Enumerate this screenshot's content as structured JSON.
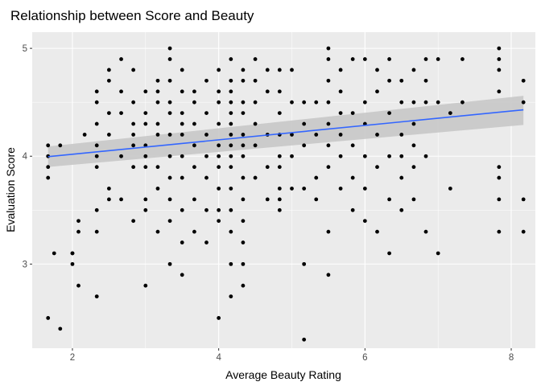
{
  "chart_data": {
    "type": "scatter",
    "title": "Relationship between Score and Beauty",
    "xlabel": "Average Beauty Rating",
    "ylabel": "Evaluation Score",
    "xlim": [
      1.45,
      8.33
    ],
    "ylim": [
      2.22,
      5.15
    ],
    "x_ticks": [
      2,
      4,
      6,
      8
    ],
    "y_ticks": [
      3,
      4,
      5
    ],
    "grid": true,
    "legend": "none",
    "colors": {
      "panel": "#ebebeb",
      "grid_major": "#ffffff",
      "points": "#000000",
      "trend_line": "#3366ff",
      "confidence_band": "#c8c8c8"
    },
    "trend": {
      "x": [
        1.667,
        8.167
      ],
      "y": [
        3.996,
        4.43
      ],
      "band_lower": [
        3.9,
        4.29
      ],
      "band_upper": [
        4.09,
        4.56
      ]
    },
    "points": [
      [
        1.667,
        2.5
      ],
      [
        1.667,
        3.8
      ],
      [
        1.667,
        3.9
      ],
      [
        1.667,
        4.1
      ],
      [
        1.833,
        2.4
      ],
      [
        1.833,
        4.1
      ],
      [
        1.75,
        3.1
      ],
      [
        1.667,
        4.0
      ],
      [
        2.0,
        3.0
      ],
      [
        2.0,
        3.1
      ],
      [
        2.0,
        3.1
      ],
      [
        2.083,
        2.8
      ],
      [
        2.083,
        3.3
      ],
      [
        2.083,
        3.4
      ],
      [
        2.167,
        4.2
      ],
      [
        2.333,
        2.7
      ],
      [
        2.333,
        3.3
      ],
      [
        2.333,
        3.5
      ],
      [
        2.333,
        3.9
      ],
      [
        2.333,
        4.0
      ],
      [
        2.333,
        4.1
      ],
      [
        2.333,
        4.3
      ],
      [
        2.333,
        4.5
      ],
      [
        2.333,
        4.6
      ],
      [
        2.5,
        3.6
      ],
      [
        2.5,
        3.7
      ],
      [
        2.5,
        4.2
      ],
      [
        2.5,
        4.4
      ],
      [
        2.5,
        4.7
      ],
      [
        2.5,
        4.8
      ],
      [
        2.667,
        3.6
      ],
      [
        2.667,
        4.0
      ],
      [
        2.667,
        4.4
      ],
      [
        2.667,
        4.6
      ],
      [
        2.667,
        4.9
      ],
      [
        2.833,
        3.4
      ],
      [
        2.833,
        3.9
      ],
      [
        2.833,
        4.1
      ],
      [
        2.833,
        4.2
      ],
      [
        2.833,
        4.3
      ],
      [
        2.833,
        4.5
      ],
      [
        2.833,
        4.8
      ],
      [
        3.0,
        3.5
      ],
      [
        3.0,
        3.6
      ],
      [
        3.0,
        3.9
      ],
      [
        3.0,
        4.0
      ],
      [
        3.0,
        4.1
      ],
      [
        3.0,
        4.3
      ],
      [
        3.0,
        4.4
      ],
      [
        3.0,
        4.6
      ],
      [
        3.0,
        2.8
      ],
      [
        3.167,
        3.3
      ],
      [
        3.167,
        3.7
      ],
      [
        3.167,
        3.9
      ],
      [
        3.167,
        4.2
      ],
      [
        3.167,
        4.3
      ],
      [
        3.167,
        4.5
      ],
      [
        3.167,
        4.6
      ],
      [
        3.167,
        4.7
      ],
      [
        3.333,
        3.0
      ],
      [
        3.333,
        3.4
      ],
      [
        3.333,
        3.6
      ],
      [
        3.333,
        3.8
      ],
      [
        3.333,
        4.0
      ],
      [
        3.333,
        4.2
      ],
      [
        3.333,
        4.4
      ],
      [
        3.333,
        4.5
      ],
      [
        3.333,
        4.7
      ],
      [
        3.333,
        4.9
      ],
      [
        3.333,
        5.0
      ],
      [
        3.5,
        2.9
      ],
      [
        3.5,
        3.2
      ],
      [
        3.5,
        3.5
      ],
      [
        3.5,
        3.8
      ],
      [
        3.5,
        4.0
      ],
      [
        3.5,
        4.2
      ],
      [
        3.5,
        4.3
      ],
      [
        3.5,
        4.4
      ],
      [
        3.5,
        4.6
      ],
      [
        3.5,
        4.8
      ],
      [
        3.667,
        3.3
      ],
      [
        3.667,
        3.6
      ],
      [
        3.667,
        3.9
      ],
      [
        3.667,
        4.1
      ],
      [
        3.667,
        4.3
      ],
      [
        3.667,
        4.5
      ],
      [
        3.667,
        4.6
      ],
      [
        3.833,
        3.2
      ],
      [
        3.833,
        3.5
      ],
      [
        3.833,
        3.8
      ],
      [
        3.833,
        4.0
      ],
      [
        3.833,
        4.2
      ],
      [
        3.833,
        4.4
      ],
      [
        3.833,
        4.7
      ],
      [
        4.0,
        3.4
      ],
      [
        4.0,
        3.5
      ],
      [
        4.0,
        3.7
      ],
      [
        4.0,
        3.9
      ],
      [
        4.0,
        4.0
      ],
      [
        4.0,
        4.1
      ],
      [
        4.0,
        4.3
      ],
      [
        4.0,
        4.5
      ],
      [
        4.0,
        4.6
      ],
      [
        4.0,
        4.8
      ],
      [
        4.0,
        2.5
      ],
      [
        4.167,
        2.7
      ],
      [
        4.167,
        3.0
      ],
      [
        4.167,
        3.3
      ],
      [
        4.167,
        3.5
      ],
      [
        4.167,
        3.7
      ],
      [
        4.167,
        3.9
      ],
      [
        4.167,
        4.0
      ],
      [
        4.167,
        4.1
      ],
      [
        4.167,
        4.2
      ],
      [
        4.167,
        4.3
      ],
      [
        4.167,
        4.4
      ],
      [
        4.167,
        4.5
      ],
      [
        4.167,
        4.6
      ],
      [
        4.167,
        4.7
      ],
      [
        4.167,
        4.9
      ],
      [
        4.333,
        2.8
      ],
      [
        4.333,
        3.0
      ],
      [
        4.333,
        3.2
      ],
      [
        4.333,
        3.4
      ],
      [
        4.333,
        3.6
      ],
      [
        4.333,
        3.8
      ],
      [
        4.333,
        4.0
      ],
      [
        4.333,
        4.1
      ],
      [
        4.333,
        4.2
      ],
      [
        4.333,
        4.4
      ],
      [
        4.333,
        4.5
      ],
      [
        4.333,
        4.7
      ],
      [
        4.333,
        4.8
      ],
      [
        4.5,
        3.8
      ],
      [
        4.5,
        4.1
      ],
      [
        4.5,
        4.3
      ],
      [
        4.5,
        4.5
      ],
      [
        4.5,
        4.7
      ],
      [
        4.5,
        4.9
      ],
      [
        4.667,
        3.6
      ],
      [
        4.667,
        3.9
      ],
      [
        4.667,
        4.2
      ],
      [
        4.667,
        4.6
      ],
      [
        4.667,
        4.8
      ],
      [
        4.833,
        3.5
      ],
      [
        4.833,
        3.6
      ],
      [
        4.833,
        3.7
      ],
      [
        4.833,
        3.9
      ],
      [
        4.833,
        4.0
      ],
      [
        4.833,
        4.2
      ],
      [
        4.833,
        4.4
      ],
      [
        4.833,
        4.6
      ],
      [
        4.833,
        4.8
      ],
      [
        5.0,
        3.7
      ],
      [
        5.0,
        4.0
      ],
      [
        5.0,
        4.2
      ],
      [
        5.0,
        4.5
      ],
      [
        5.0,
        4.8
      ],
      [
        5.167,
        2.3
      ],
      [
        5.167,
        3.0
      ],
      [
        5.167,
        3.7
      ],
      [
        5.167,
        4.1
      ],
      [
        5.167,
        4.3
      ],
      [
        5.167,
        4.5
      ],
      [
        5.333,
        3.6
      ],
      [
        5.333,
        3.8
      ],
      [
        5.333,
        4.2
      ],
      [
        5.333,
        4.5
      ],
      [
        5.5,
        2.9
      ],
      [
        5.5,
        3.3
      ],
      [
        5.5,
        3.9
      ],
      [
        5.5,
        4.1
      ],
      [
        5.5,
        4.3
      ],
      [
        5.5,
        4.5
      ],
      [
        5.5,
        4.7
      ],
      [
        5.5,
        4.9
      ],
      [
        5.5,
        5.0
      ],
      [
        5.667,
        3.7
      ],
      [
        5.667,
        4.0
      ],
      [
        5.667,
        4.2
      ],
      [
        5.667,
        4.4
      ],
      [
        5.667,
        4.6
      ],
      [
        5.667,
        4.8
      ],
      [
        5.833,
        3.5
      ],
      [
        5.833,
        3.8
      ],
      [
        5.833,
        4.1
      ],
      [
        5.833,
        4.4
      ],
      [
        5.833,
        4.9
      ],
      [
        6.0,
        3.4
      ],
      [
        6.0,
        3.7
      ],
      [
        6.0,
        4.0
      ],
      [
        6.0,
        4.3
      ],
      [
        6.0,
        4.5
      ],
      [
        6.0,
        4.9
      ],
      [
        6.167,
        3.3
      ],
      [
        6.167,
        3.9
      ],
      [
        6.167,
        4.2
      ],
      [
        6.167,
        4.6
      ],
      [
        6.167,
        4.8
      ],
      [
        6.333,
        3.1
      ],
      [
        6.333,
        3.6
      ],
      [
        6.333,
        4.0
      ],
      [
        6.333,
        4.4
      ],
      [
        6.333,
        4.7
      ],
      [
        6.333,
        4.9
      ],
      [
        6.5,
        3.5
      ],
      [
        6.5,
        3.8
      ],
      [
        6.5,
        4.0
      ],
      [
        6.5,
        4.2
      ],
      [
        6.5,
        4.5
      ],
      [
        6.5,
        4.7
      ],
      [
        6.667,
        3.6
      ],
      [
        6.667,
        3.9
      ],
      [
        6.667,
        4.1
      ],
      [
        6.667,
        4.3
      ],
      [
        6.667,
        4.5
      ],
      [
        6.667,
        4.8
      ],
      [
        6.833,
        3.3
      ],
      [
        6.833,
        4.0
      ],
      [
        6.833,
        4.5
      ],
      [
        6.833,
        4.7
      ],
      [
        6.833,
        4.9
      ],
      [
        7.0,
        3.1
      ],
      [
        7.0,
        4.5
      ],
      [
        7.0,
        4.9
      ],
      [
        7.167,
        3.7
      ],
      [
        7.167,
        4.4
      ],
      [
        7.333,
        4.5
      ],
      [
        7.333,
        4.9
      ],
      [
        7.833,
        3.3
      ],
      [
        7.833,
        3.6
      ],
      [
        7.833,
        3.8
      ],
      [
        7.833,
        3.9
      ],
      [
        7.833,
        4.6
      ],
      [
        7.833,
        4.8
      ],
      [
        7.833,
        4.9
      ],
      [
        7.833,
        5.0
      ],
      [
        8.167,
        3.3
      ],
      [
        8.167,
        3.6
      ],
      [
        8.167,
        4.5
      ],
      [
        8.167,
        4.7
      ]
    ]
  }
}
